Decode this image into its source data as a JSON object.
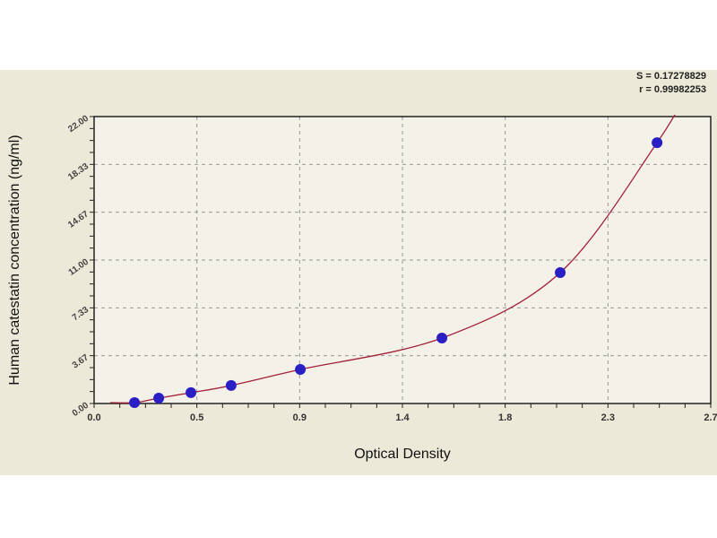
{
  "chart_data": {
    "type": "scatter",
    "xlabel": "Optical Density",
    "ylabel": "Human catestatin concentration (ng/ml)",
    "xlim": [
      0,
      2.7
    ],
    "ylim": [
      0,
      22
    ],
    "xticks": [
      0,
      0.45,
      0.9,
      1.35,
      1.8,
      2.25,
      2.7
    ],
    "xtick_labels": [
      "0.0",
      "0.5",
      "0.9",
      "1.4",
      "1.8",
      "2.3",
      "2.7"
    ],
    "yticks": [
      0,
      3.67,
      7.33,
      11,
      14.67,
      18.33,
      22
    ],
    "ytick_labels": [
      "0.00",
      "3.67",
      "7.33",
      "11.00",
      "14.67",
      "18.33",
      "22.00"
    ],
    "grid": true,
    "points": {
      "x": [
        0.177,
        0.283,
        0.424,
        0.6,
        0.903,
        1.523,
        2.041,
        2.465
      ],
      "y": [
        0.07,
        0.41,
        0.83,
        1.38,
        2.61,
        5.02,
        10.04,
        20.0
      ]
    },
    "fit_curve": true,
    "stats": [
      "S = 0.17278829",
      "r = 0.99982253"
    ],
    "colors": {
      "points": "#2a1fc4",
      "curve": "#a3213a",
      "grid": "#9a9a9a",
      "background": "#ece9d8"
    }
  }
}
